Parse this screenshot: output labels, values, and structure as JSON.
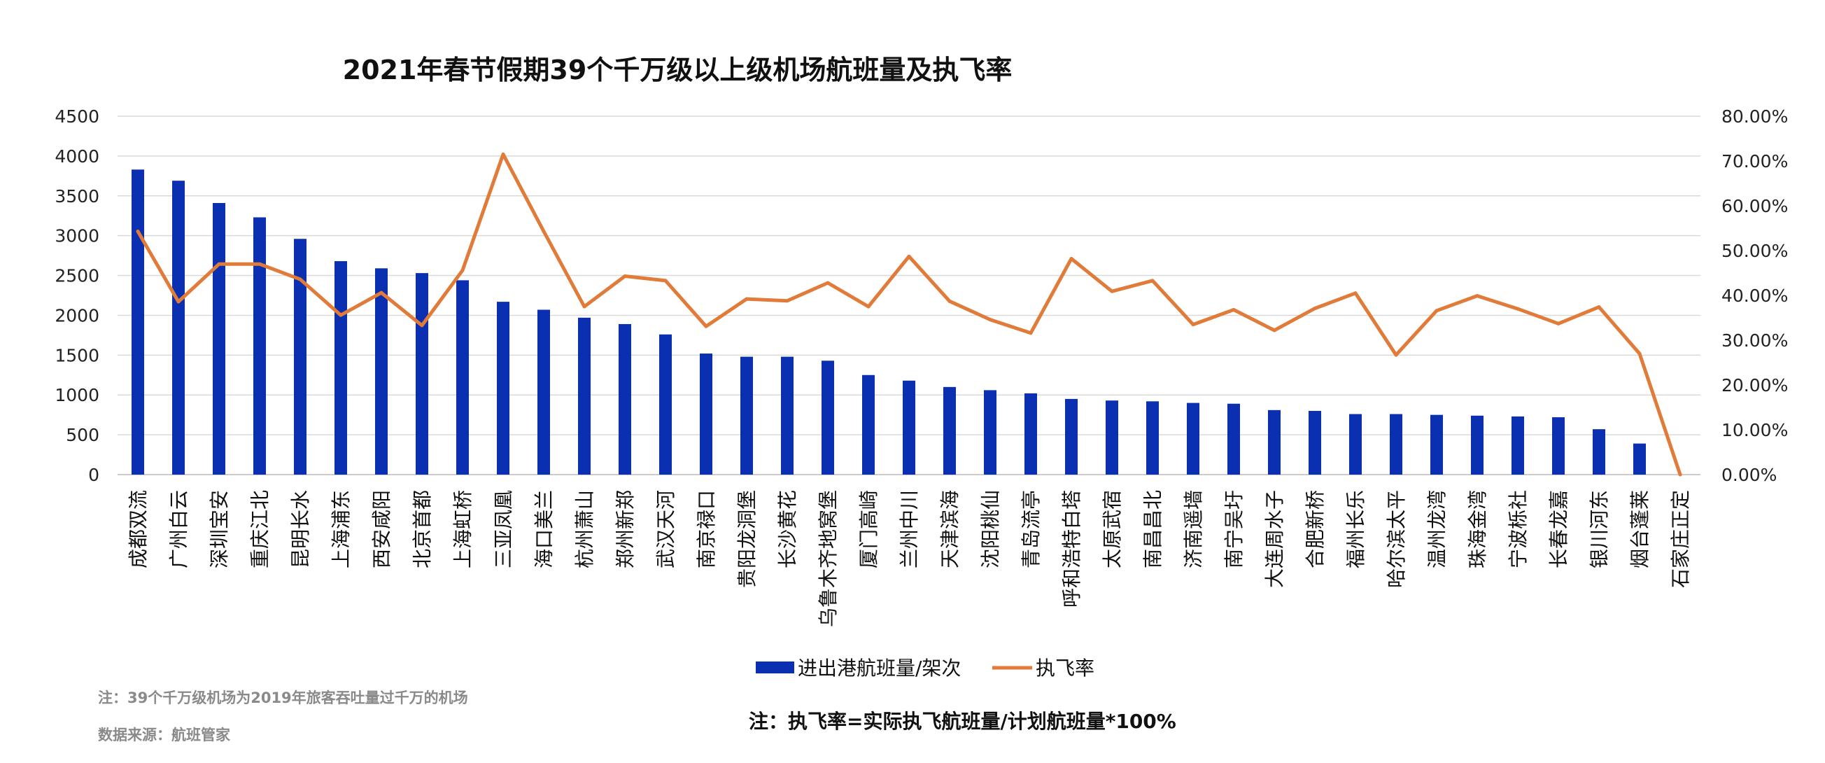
{
  "chart_data": {
    "type": "bar",
    "title": "2021年春节假期39个千万级以上级机场航班量及执飞率",
    "categories": [
      "成都双流",
      "广州白云",
      "深圳宝安",
      "重庆江北",
      "昆明长水",
      "上海浦东",
      "西安咸阳",
      "北京首都",
      "上海虹桥",
      "三亚凤凰",
      "海口美兰",
      "杭州萧山",
      "郑州新郑",
      "武汉天河",
      "南京禄口",
      "贵阳龙洞堡",
      "长沙黄花",
      "乌鲁木齐地窝堡",
      "厦门高崎",
      "兰州中川",
      "天津滨海",
      "沈阳桃仙",
      "青岛流亭",
      "呼和浩特白塔",
      "太原武宿",
      "南昌昌北",
      "济南遥墙",
      "南宁吴圩",
      "大连周水子",
      "合肥新桥",
      "福州长乐",
      "哈尔滨太平",
      "温州龙湾",
      "珠海金湾",
      "宁波栎社",
      "长春龙嘉",
      "银川河东",
      "烟台蓬莱",
      "石家庄正定"
    ],
    "series": [
      {
        "name": "进出港航班量/架次",
        "type": "bar",
        "axis": "left",
        "color": "#0a2fb0",
        "values": [
          3830,
          3690,
          3410,
          3230,
          2960,
          2680,
          2590,
          2530,
          2440,
          2170,
          2070,
          1970,
          1890,
          1760,
          1520,
          1480,
          1480,
          1430,
          1250,
          1180,
          1100,
          1060,
          1020,
          950,
          930,
          920,
          900,
          890,
          810,
          800,
          760,
          760,
          750,
          740,
          730,
          720,
          570,
          390,
          0
        ]
      },
      {
        "name": "执飞率",
        "type": "line",
        "axis": "right",
        "color": "#e07b39",
        "values": [
          0.543,
          0.386,
          0.47,
          0.47,
          0.436,
          0.356,
          0.406,
          0.333,
          0.456,
          0.715,
          0.543,
          0.375,
          0.443,
          0.433,
          0.331,
          0.392,
          0.388,
          0.428,
          0.375,
          0.487,
          0.387,
          0.346,
          0.316,
          0.482,
          0.409,
          0.433,
          0.335,
          0.368,
          0.322,
          0.371,
          0.405,
          0.267,
          0.366,
          0.399,
          0.37,
          0.337,
          0.374,
          0.27,
          0.0
        ]
      }
    ],
    "y_left": {
      "min": 0,
      "max": 4500,
      "step": 500,
      "ticks": [
        "0",
        "500",
        "1000",
        "1500",
        "2000",
        "2500",
        "3000",
        "3500",
        "4000",
        "4500"
      ]
    },
    "y_right": {
      "min": 0,
      "max": 0.8,
      "step": 0.1,
      "ticks": [
        "0.00%",
        "10.00%",
        "20.00%",
        "30.00%",
        "40.00%",
        "50.00%",
        "60.00%",
        "70.00%",
        "80.00%"
      ]
    },
    "grid": true,
    "legend_position": "bottom",
    "legend": [
      "进出港航班量/架次",
      "执飞率"
    ]
  },
  "notes": {
    "note1": "注：39个千万级机场为2019年旅客吞吐量过千万的机场",
    "source": "数据来源：航班管家",
    "formula": "注：执飞率=实际执飞航班量/计划航班量*100%"
  }
}
